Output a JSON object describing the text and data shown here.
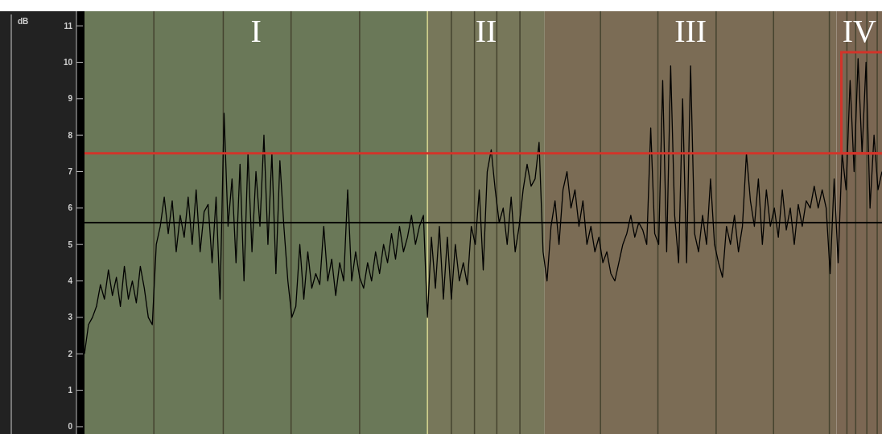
{
  "chart_data": {
    "type": "line",
    "ylabel": "dB",
    "ylim": [
      -0.2,
      11.4
    ],
    "yticks": [
      0,
      1,
      2,
      3,
      4,
      5,
      6,
      7,
      8,
      9,
      10,
      11
    ],
    "tick_labels": "y",
    "line_style": "solid",
    "categories": [
      null,
      null,
      null,
      null,
      null,
      null,
      null,
      null,
      null,
      null,
      null,
      null,
      null,
      null,
      null,
      null,
      null,
      null,
      null,
      null,
      null,
      null,
      null,
      null,
      null,
      null,
      null,
      null,
      null,
      null,
      null,
      null,
      null,
      null,
      null,
      null,
      null,
      null,
      null,
      null,
      null,
      null,
      null,
      null,
      null,
      null,
      null,
      null,
      null,
      null,
      null,
      null,
      null,
      null,
      null,
      null,
      null,
      null,
      null,
      null,
      null,
      null,
      null,
      null,
      null,
      null,
      null,
      null,
      null,
      null,
      null,
      null,
      null,
      null,
      null,
      null,
      null,
      null,
      null,
      null,
      null,
      null,
      null,
      null,
      null,
      null,
      null,
      null,
      null,
      null,
      null,
      null,
      null,
      null,
      null,
      null,
      null,
      null,
      null,
      null,
      null,
      null,
      null,
      null,
      null,
      null,
      null,
      null,
      null,
      null,
      null,
      null,
      null,
      null,
      null,
      null,
      null,
      null,
      null,
      null,
      null,
      null,
      null,
      null,
      null,
      null,
      null,
      null,
      null,
      null,
      null,
      null,
      null,
      null,
      null,
      null,
      null,
      null,
      null,
      null,
      null,
      null,
      null,
      null,
      null,
      null,
      null,
      null,
      null,
      null,
      null,
      null,
      null,
      null,
      null,
      null,
      null,
      null,
      null,
      null,
      null,
      null,
      null,
      null,
      null,
      null,
      null,
      null,
      null,
      null,
      null,
      null,
      null,
      null,
      null,
      null,
      null,
      null,
      null,
      null,
      null,
      null,
      null,
      null,
      null,
      null,
      null,
      null,
      null,
      null,
      null,
      null,
      null,
      null,
      null,
      null,
      null,
      null,
      null,
      null,
      null
    ],
    "series": [
      {
        "color": "#000000",
        "values": [
          2.0,
          2.8,
          3.0,
          3.3,
          3.9,
          3.5,
          4.3,
          3.6,
          4.1,
          3.3,
          4.4,
          3.5,
          4.0,
          3.4,
          4.4,
          3.8,
          3.0,
          2.8,
          5.0,
          5.5,
          6.3,
          5.3,
          6.2,
          4.8,
          5.8,
          5.2,
          6.3,
          5.0,
          6.5,
          4.8,
          5.9,
          6.1,
          4.5,
          6.3,
          3.5,
          8.6,
          5.5,
          6.8,
          4.5,
          7.2,
          4.0,
          7.5,
          4.8,
          7.0,
          5.5,
          8.0,
          5.0,
          7.5,
          4.2,
          7.3,
          5.5,
          4.0,
          3.0,
          3.3,
          5.0,
          3.5,
          4.8,
          3.8,
          4.2,
          3.9,
          5.5,
          4.0,
          4.6,
          3.6,
          4.5,
          4.0,
          6.5,
          4.0,
          4.8,
          4.1,
          3.8,
          4.5,
          4.0,
          4.8,
          4.2,
          5.0,
          4.5,
          5.3,
          4.6,
          5.5,
          4.8,
          5.2,
          5.8,
          5.0,
          5.5,
          5.8,
          3.0,
          5.2,
          3.8,
          5.5,
          3.5,
          5.2,
          3.5,
          5.0,
          4.0,
          4.5,
          3.9,
          5.5,
          5.0,
          6.5,
          4.3,
          7.0,
          7.6,
          6.5,
          5.6,
          6.0,
          5.0,
          6.3,
          4.8,
          5.5,
          6.5,
          7.2,
          6.6,
          6.8,
          7.8,
          4.8,
          4.0,
          5.5,
          6.2,
          5.0,
          6.5,
          7.0,
          6.0,
          6.5,
          5.5,
          6.2,
          5.0,
          5.5,
          4.8,
          5.2,
          4.5,
          4.8,
          4.2,
          4.0,
          4.5,
          5.0,
          5.3,
          5.8,
          5.2,
          5.6,
          5.4,
          5.0,
          8.2,
          5.3,
          5.0,
          9.5,
          4.8,
          9.9,
          5.8,
          4.5,
          9.0,
          4.5,
          9.9,
          5.3,
          4.8,
          5.8,
          5.0,
          6.8,
          5.0,
          4.5,
          4.1,
          5.5,
          5.0,
          5.8,
          4.8,
          5.5,
          7.5,
          6.2,
          5.5,
          6.8,
          5.0,
          6.5,
          5.5,
          6.0,
          5.2,
          6.5,
          5.4,
          6.0,
          5.0,
          6.1,
          5.5,
          6.2,
          6.0,
          6.6,
          6.0,
          6.5,
          6.0,
          4.2,
          6.8,
          4.5,
          7.5,
          6.5,
          9.5,
          7.0,
          10.1,
          7.5,
          10.0,
          6.0,
          8.0,
          6.5,
          7.0
        ]
      }
    ],
    "annotations": [
      "I",
      "II",
      "III",
      "IV"
    ],
    "ref_lines": [
      {
        "axis": "y",
        "value": 7.5,
        "color": "#d2342a"
      },
      {
        "axis": "y",
        "value": 5.6,
        "color": "#000000"
      }
    ]
  }
}
